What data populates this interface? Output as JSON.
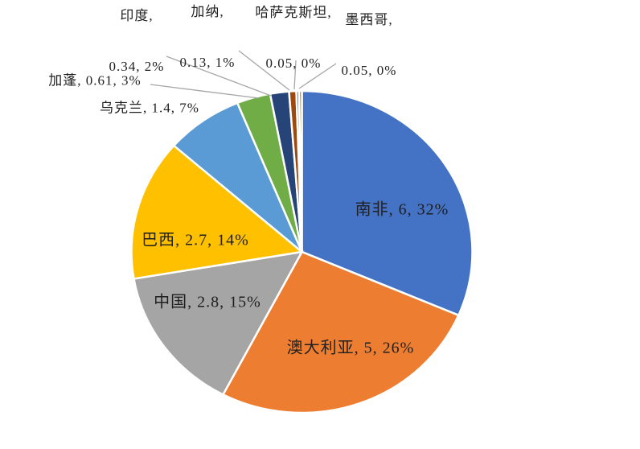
{
  "chart_data": {
    "type": "pie",
    "direction": "clockwise",
    "start_angle_deg": 0,
    "total": 19.08,
    "legend": "none",
    "label_format": "name, value, percent",
    "background_color": "#FFFFFF",
    "text_color": "#1F1F1F",
    "leader_line_color": "#A6A6A6",
    "slice_border_color": "#FFFFFF",
    "slices": [
      {
        "name": "南非",
        "value": 6,
        "pct": "32%",
        "color": "#4472C4",
        "label_placement": "inside",
        "label": "南非, 6, 32%"
      },
      {
        "name": "澳大利亚",
        "value": 5,
        "pct": "26%",
        "color": "#ED7D31",
        "label_placement": "inside",
        "label": "澳大利亚, 5, 26%"
      },
      {
        "name": "中国",
        "value": 2.8,
        "pct": "15%",
        "color": "#A5A5A5",
        "label_placement": "inside",
        "label": "中国, 2.8, 15%"
      },
      {
        "name": "巴西",
        "value": 2.7,
        "pct": "14%",
        "color": "#FFC000",
        "label_placement": "inside",
        "label": "巴西, 2.7, 14%"
      },
      {
        "name": "乌克兰",
        "value": 1.4,
        "pct": "7%",
        "color": "#5B9BD5",
        "label_placement": "outside",
        "label": "乌克兰, 1.4, 7%"
      },
      {
        "name": "加蓬",
        "value": 0.61,
        "pct": "3%",
        "color": "#70AD47",
        "label_placement": "outside",
        "label": "加蓬, 0.61, 3%"
      },
      {
        "name": "印度",
        "value": 0.34,
        "pct": "2%",
        "color": "#264478",
        "label_placement": "outside",
        "label": "印度, 0.34, 2%",
        "label_line1": "印度,",
        "label_line2": "0.34, 2%"
      },
      {
        "name": "加纳",
        "value": 0.13,
        "pct": "1%",
        "color": "#9E480E",
        "label_placement": "outside",
        "label": "加纳, 0.13, 1%",
        "label_line1": "加纳,",
        "label_line2": "0.13, 1%"
      },
      {
        "name": "哈萨克斯坦",
        "value": 0.05,
        "pct": "0%",
        "color": "#636363",
        "label_placement": "outside",
        "label": "哈萨克斯坦, 0.05, 0%",
        "label_line1": "哈萨克斯坦,",
        "label_line2": "0.05, 0%"
      },
      {
        "name": "墨西哥",
        "value": 0.05,
        "pct": "0%",
        "color": "#997300",
        "label_placement": "outside",
        "label": "墨西哥, 0.05, 0%",
        "label_line1": "墨西哥,",
        "label_line2": "0.05, 0%"
      }
    ]
  }
}
